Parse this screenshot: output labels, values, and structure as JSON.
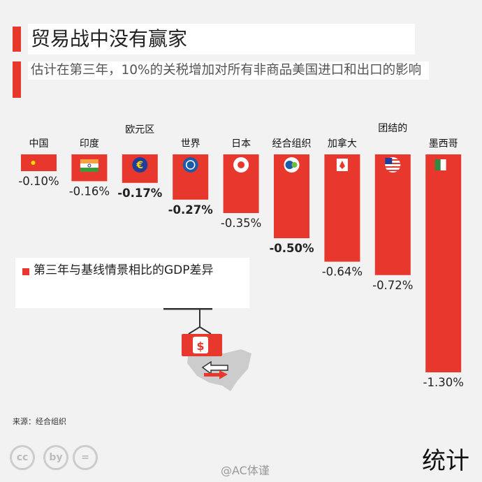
{
  "title": "贸易战中没有赢家",
  "subtitle": "估计在第三年，10%的关税增加对所有非商品美国进口和出口的影响",
  "legend": "第三年与基线情景相比的GDP差异",
  "source": "来源：经合组织",
  "brand": "统计",
  "watermark": "@AC体谨",
  "cc_icons": [
    "cc",
    "by",
    "="
  ],
  "colors": {
    "bar": "#e8382e",
    "accent": "#e8382e"
  },
  "chart_data": {
    "type": "bar",
    "categories": [
      "中国",
      "印度",
      "欧元区",
      "世界",
      "日本",
      "经合组织",
      "加拿大",
      "团结的",
      "墨西哥"
    ],
    "values": [
      -0.1,
      -0.16,
      -0.17,
      -0.27,
      -0.35,
      -0.5,
      -0.64,
      -0.72,
      -1.3
    ],
    "value_labels": [
      "-0.10%",
      "-0.16%",
      "-0.17%",
      "-0.27%",
      "-0.35%",
      "-0.50%",
      "-0.64%",
      "-0.72%",
      "-1.30%"
    ],
    "bold": [
      false,
      false,
      true,
      true,
      false,
      true,
      false,
      false,
      false
    ],
    "flags": [
      "china-flag-icon",
      "india-flag-icon",
      "euro-icon",
      "globe-icon",
      "japan-flag-icon",
      "oecd-icon",
      "canada-flag-icon",
      "usa-flag-icon",
      "mexico-flag-icon"
    ],
    "ylim": [
      -1.3,
      0
    ]
  }
}
